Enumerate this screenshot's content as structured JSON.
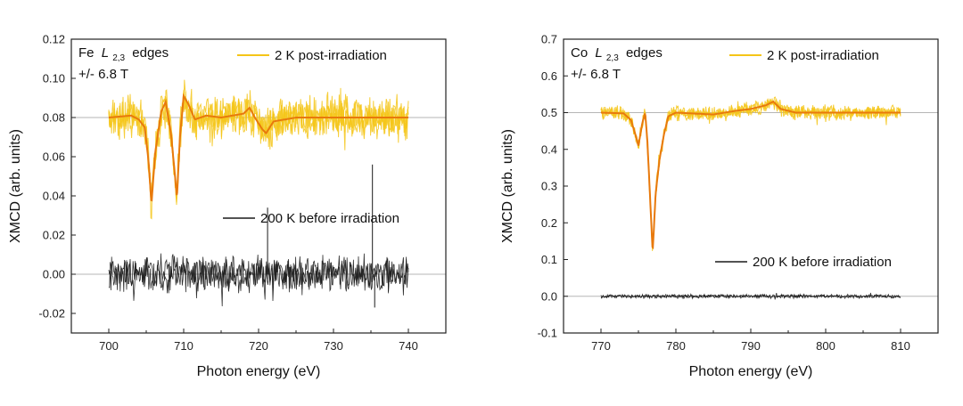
{
  "chart_data": [
    {
      "type": "line",
      "xlabel": "Photon energy (eV)",
      "ylabel": "XMCD (arb. units)",
      "xlim": [
        695,
        745
      ],
      "ylim": [
        -0.03,
        0.12
      ],
      "xticks": [
        700,
        710,
        720,
        730,
        740
      ],
      "yticks": [
        -0.02,
        0.0,
        0.02,
        0.04,
        0.06,
        0.08,
        0.1,
        0.12
      ],
      "ytick_labels": [
        "-0.02",
        "0.00",
        "0.02",
        "0.04",
        "0.06",
        "0.08",
        "0.10",
        "0.12"
      ],
      "reference_lines": [
        0.0,
        0.08
      ],
      "annotation": {
        "element": "Fe",
        "edge_symbol": "L",
        "edge_sub": "2,3",
        "edge_word": "edges",
        "field": "+/- 6.8 T"
      },
      "legend": [
        {
          "label": "2 K post-irradiation",
          "color": "#f5c518",
          "fit_color": "#e8790c",
          "position": "top-right"
        },
        {
          "label": "200 K before irradiation",
          "color": "#1a1a1a",
          "position": "middle-right"
        }
      ],
      "series": [
        {
          "name": "2 K post-irradiation",
          "color": "#f5c518",
          "fit_color": "#e8790c",
          "x_range": [
            700,
            740
          ],
          "baseline": 0.08,
          "noise": 0.011,
          "fit": [
            [
              700,
              0.08
            ],
            [
              703,
              0.081
            ],
            [
              704,
              0.079
            ],
            [
              704.8,
              0.075
            ],
            [
              705.3,
              0.058
            ],
            [
              705.7,
              0.036
            ],
            [
              706.2,
              0.062
            ],
            [
              707,
              0.083
            ],
            [
              707.6,
              0.088
            ],
            [
              708.3,
              0.072
            ],
            [
              708.8,
              0.052
            ],
            [
              709.1,
              0.039
            ],
            [
              709.5,
              0.07
            ],
            [
              710,
              0.091
            ],
            [
              710.6,
              0.087
            ],
            [
              711.5,
              0.079
            ],
            [
              713,
              0.081
            ],
            [
              715,
              0.08
            ],
            [
              718,
              0.082
            ],
            [
              718.8,
              0.085
            ],
            [
              719.5,
              0.08
            ],
            [
              720.5,
              0.074
            ],
            [
              721,
              0.072
            ],
            [
              722,
              0.078
            ],
            [
              725,
              0.08
            ],
            [
              740,
              0.08
            ]
          ]
        },
        {
          "name": "200 K before irradiation",
          "color": "#1a1a1a",
          "x_range": [
            700,
            740
          ],
          "baseline": 0.0,
          "noise": 0.009,
          "spikes": [
            [
              721.2,
              0.034
            ],
            [
              735.2,
              0.056
            ],
            [
              735.5,
              -0.017
            ]
          ]
        }
      ]
    },
    {
      "type": "line",
      "xlabel": "Photon energy (eV)",
      "ylabel": "XMCD (arb. units)",
      "xlim": [
        765,
        815
      ],
      "ylim": [
        -0.1,
        0.7
      ],
      "xticks": [
        770,
        780,
        790,
        800,
        810
      ],
      "yticks": [
        -0.1,
        0.0,
        0.1,
        0.2,
        0.3,
        0.4,
        0.5,
        0.6,
        0.7
      ],
      "ytick_labels": [
        "-0.1",
        "0.0",
        "0.1",
        "0.2",
        "0.3",
        "0.4",
        "0.5",
        "0.6",
        "0.7"
      ],
      "reference_lines": [
        0.0,
        0.5
      ],
      "annotation": {
        "element": "Co",
        "edge_symbol": "L",
        "edge_sub": "2,3",
        "edge_word": "edges",
        "field": "+/- 6.8 T"
      },
      "legend": [
        {
          "label": "2 K post-irradiation",
          "color": "#f5c518",
          "fit_color": "#e8790c",
          "position": "top-right"
        },
        {
          "label": "200 K before irradiation",
          "color": "#1a1a1a",
          "position": "middle-right"
        }
      ],
      "series": [
        {
          "name": "2 K post-irradiation",
          "color": "#f5c518",
          "fit_color": "#e8790c",
          "x_range": [
            770,
            810
          ],
          "baseline": 0.5,
          "noise": 0.02,
          "fit": [
            [
              770,
              0.5
            ],
            [
              773,
              0.498
            ],
            [
              774,
              0.48
            ],
            [
              774.6,
              0.44
            ],
            [
              775,
              0.41
            ],
            [
              775.5,
              0.47
            ],
            [
              775.9,
              0.5
            ],
            [
              776.2,
              0.42
            ],
            [
              776.6,
              0.25
            ],
            [
              776.9,
              0.12
            ],
            [
              777.3,
              0.28
            ],
            [
              777.8,
              0.37
            ],
            [
              778.4,
              0.44
            ],
            [
              779,
              0.49
            ],
            [
              780,
              0.5
            ],
            [
              785,
              0.495
            ],
            [
              788,
              0.505
            ],
            [
              790,
              0.51
            ],
            [
              792,
              0.52
            ],
            [
              793,
              0.53
            ],
            [
              794,
              0.51
            ],
            [
              796,
              0.5
            ],
            [
              810,
              0.5
            ]
          ]
        },
        {
          "name": "200 K before irradiation",
          "color": "#1a1a1a",
          "x_range": [
            770,
            810
          ],
          "baseline": 0.0,
          "noise": 0.005
        }
      ]
    }
  ]
}
